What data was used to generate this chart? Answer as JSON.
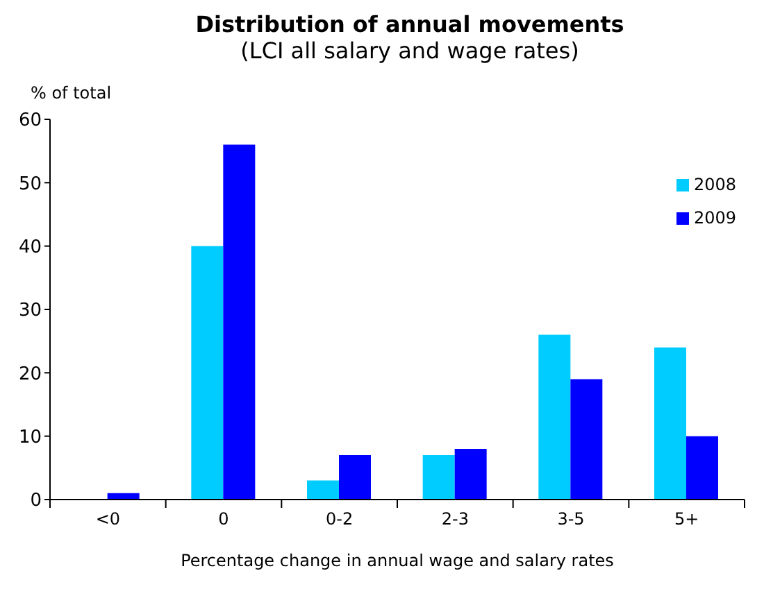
{
  "chart_data": {
    "type": "bar",
    "title": "Distribution of annual movements",
    "subtitle": "(LCI all salary and wage rates)",
    "ylabel": "% of total",
    "xlabel": "Percentage change in annual wage and salary rates",
    "categories": [
      "<0",
      "0",
      "0-2",
      "2-3",
      "3-5",
      "5+"
    ],
    "series": [
      {
        "name": "2008",
        "color": "#00ccff",
        "values": [
          0,
          40,
          3,
          7,
          26,
          24
        ]
      },
      {
        "name": "2009",
        "color": "#0000ff",
        "values": [
          1,
          56,
          7,
          8,
          19,
          10
        ]
      }
    ],
    "ylim": [
      0,
      60
    ],
    "yticks": [
      0,
      10,
      20,
      30,
      40,
      50,
      60
    ],
    "legend": "top right"
  }
}
